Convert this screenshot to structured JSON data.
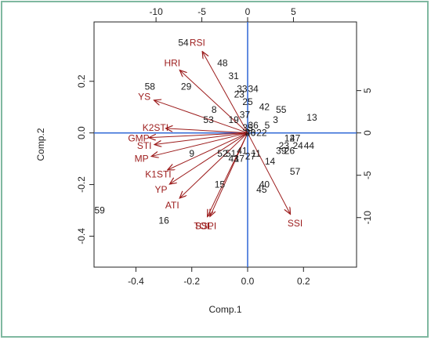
{
  "chart_data": {
    "type": "biplot",
    "xlabel": "Comp.1",
    "ylabel": "Comp.2",
    "xlim": [
      -0.55,
      0.39
    ],
    "ylim": [
      -0.52,
      0.43
    ],
    "xticks": [
      -0.4,
      -0.2,
      0.0,
      0.2
    ],
    "xtick_labels": [
      "-0.4",
      "-0.2",
      "0.0",
      "0.2"
    ],
    "yticks": [
      -0.4,
      -0.2,
      0.0,
      0.2
    ],
    "ytick_labels": [
      "-0.4",
      "-0.2",
      "0.0",
      "0.2"
    ],
    "top_axis": {
      "ticks": [
        -10,
        -5,
        0,
        5
      ],
      "tick_labels": [
        "-10",
        "-5",
        "0",
        "5"
      ],
      "scale": 0.0328
    },
    "right_axis": {
      "ticks": [
        5,
        0,
        -5,
        -10
      ],
      "tick_labels": [
        "5",
        "0",
        "-5",
        "-10"
      ],
      "scale": 0.0328
    },
    "colors": {
      "loading": "#9c1c1c",
      "zero_line": "#3a6fd8",
      "observation": "#1a1a1a"
    },
    "observations": [
      {
        "label": "54",
        "x": -0.23,
        "y": 0.35
      },
      {
        "label": "48",
        "x": -0.09,
        "y": 0.27
      },
      {
        "label": "31",
        "x": -0.05,
        "y": 0.22
      },
      {
        "label": "58",
        "x": -0.35,
        "y": 0.18
      },
      {
        "label": "29",
        "x": -0.22,
        "y": 0.18
      },
      {
        "label": "33",
        "x": -0.02,
        "y": 0.17
      },
      {
        "label": "34",
        "x": 0.02,
        "y": 0.17
      },
      {
        "label": "23",
        "x": -0.03,
        "y": 0.15
      },
      {
        "label": "25",
        "x": 0.0,
        "y": 0.12
      },
      {
        "label": "42",
        "x": 0.06,
        "y": 0.1
      },
      {
        "label": "55",
        "x": 0.12,
        "y": 0.09
      },
      {
        "label": "13",
        "x": 0.23,
        "y": 0.06
      },
      {
        "label": "8",
        "x": -0.12,
        "y": 0.09
      },
      {
        "label": "53",
        "x": -0.14,
        "y": 0.05
      },
      {
        "label": "37",
        "x": -0.01,
        "y": 0.07
      },
      {
        "label": "19",
        "x": -0.05,
        "y": 0.05
      },
      {
        "label": "35",
        "x": 0.0,
        "y": 0.02
      },
      {
        "label": "36",
        "x": 0.02,
        "y": 0.03
      },
      {
        "label": "5",
        "x": 0.07,
        "y": 0.03
      },
      {
        "label": "3",
        "x": 0.1,
        "y": 0.05
      },
      {
        "label": "20",
        "x": 0.01,
        "y": 0.0
      },
      {
        "label": "22",
        "x": 0.05,
        "y": 0.0
      },
      {
        "label": "12",
        "x": 0.15,
        "y": -0.02
      },
      {
        "label": "47",
        "x": 0.17,
        "y": -0.02
      },
      {
        "label": "23",
        "x": 0.13,
        "y": -0.05
      },
      {
        "label": "24",
        "x": 0.18,
        "y": -0.05
      },
      {
        "label": "44",
        "x": 0.22,
        "y": -0.05
      },
      {
        "label": "39",
        "x": 0.12,
        "y": -0.07
      },
      {
        "label": "26",
        "x": 0.15,
        "y": -0.07
      },
      {
        "label": "9",
        "x": -0.2,
        "y": -0.08
      },
      {
        "label": "52",
        "x": -0.09,
        "y": -0.08
      },
      {
        "label": "51",
        "x": -0.06,
        "y": -0.08
      },
      {
        "label": "41",
        "x": -0.02,
        "y": -0.07
      },
      {
        "label": "11",
        "x": 0.03,
        "y": -0.08
      },
      {
        "label": "43",
        "x": -0.05,
        "y": -0.1
      },
      {
        "label": "17",
        "x": -0.03,
        "y": -0.1
      },
      {
        "label": "27",
        "x": 0.01,
        "y": -0.09
      },
      {
        "label": "14",
        "x": 0.08,
        "y": -0.11
      },
      {
        "label": "57",
        "x": 0.17,
        "y": -0.15
      },
      {
        "label": "15",
        "x": -0.1,
        "y": -0.2
      },
      {
        "label": "40",
        "x": 0.06,
        "y": -0.2
      },
      {
        "label": "45",
        "x": 0.05,
        "y": -0.22
      },
      {
        "label": "59",
        "x": -0.53,
        "y": -0.3
      },
      {
        "label": "16",
        "x": -0.3,
        "y": -0.34
      },
      {
        "label": "46",
        "x": 0.01,
        "y": 0.0
      }
    ],
    "loadings": [
      {
        "label": "RSI",
        "x": -0.18,
        "y": 0.35
      },
      {
        "label": "HRI",
        "x": -0.27,
        "y": 0.27
      },
      {
        "label": "YS",
        "x": -0.37,
        "y": 0.14
      },
      {
        "label": "K2STI",
        "x": -0.33,
        "y": 0.02
      },
      {
        "label": "GMP",
        "x": -0.39,
        "y": -0.02
      },
      {
        "label": "STI",
        "x": -0.37,
        "y": -0.05
      },
      {
        "label": "MP",
        "x": -0.38,
        "y": -0.1
      },
      {
        "label": "K1STI",
        "x": -0.32,
        "y": -0.16
      },
      {
        "label": "YP",
        "x": -0.31,
        "y": -0.22
      },
      {
        "label": "ATI",
        "x": -0.27,
        "y": -0.28
      },
      {
        "label": "TOL",
        "x": -0.16,
        "y": -0.36
      },
      {
        "label": "SSPI",
        "x": -0.15,
        "y": -0.36
      },
      {
        "label": "SSI",
        "x": 0.17,
        "y": -0.35
      }
    ]
  }
}
